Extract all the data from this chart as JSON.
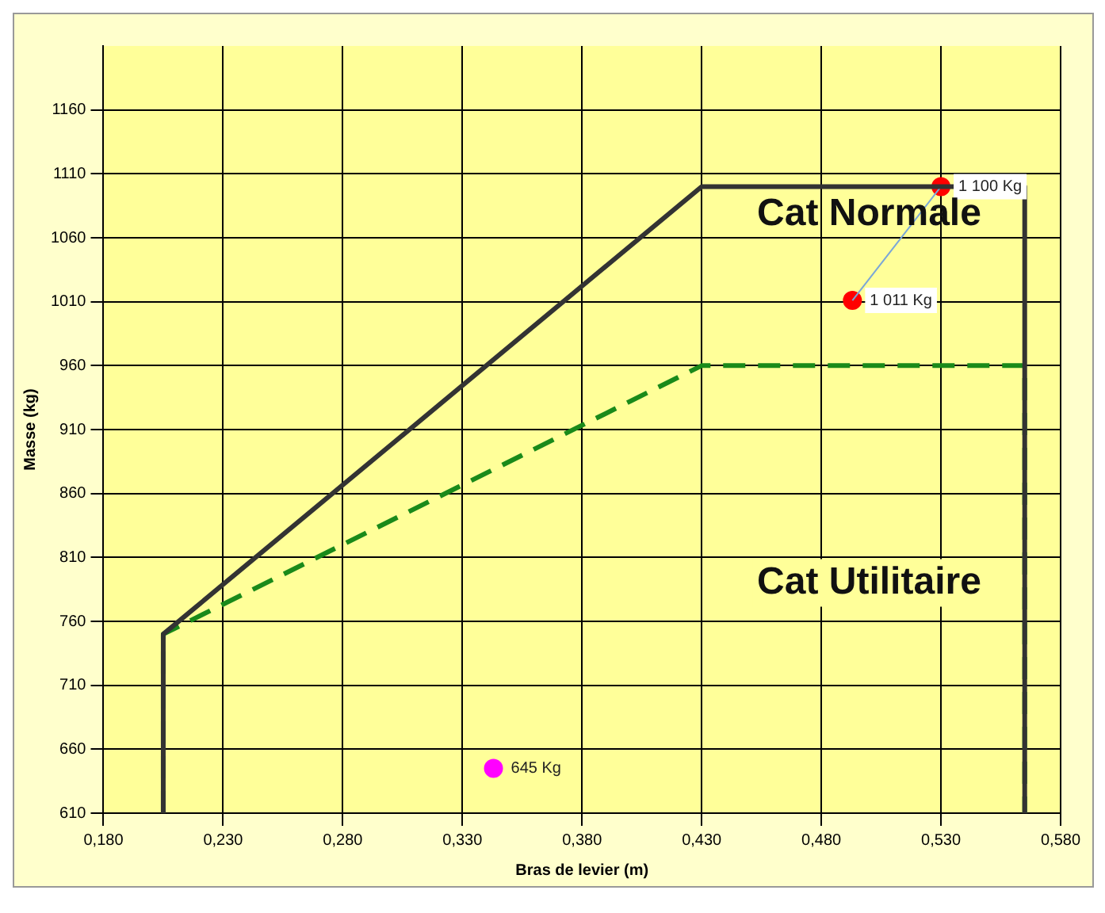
{
  "chart_data": {
    "type": "line",
    "xlabel": "Bras de levier (m)",
    "ylabel": "Masse (kg)",
    "xlim": [
      0.18,
      0.58
    ],
    "xticks": [
      {
        "value": 0.18,
        "label": "0,180"
      },
      {
        "value": 0.23,
        "label": "0,230"
      },
      {
        "value": 0.28,
        "label": "0,280"
      },
      {
        "value": 0.33,
        "label": "0,330"
      },
      {
        "value": 0.38,
        "label": "0,380"
      },
      {
        "value": 0.43,
        "label": "0,430"
      },
      {
        "value": 0.48,
        "label": "0,480"
      },
      {
        "value": 0.53,
        "label": "0,530"
      },
      {
        "value": 0.58,
        "label": "0,580"
      }
    ],
    "ylim": [
      610,
      1210
    ],
    "yticks": [
      610,
      660,
      710,
      760,
      810,
      860,
      910,
      960,
      1010,
      1060,
      1110,
      1160
    ],
    "grid": true,
    "legend": false,
    "series": [
      {
        "color": "#333333",
        "line_style": "solid",
        "marker": "none",
        "x": [
          0.205,
          0.205,
          0.43,
          0.565,
          0.565
        ],
        "values": [
          610,
          750,
          1100,
          1100,
          610
        ]
      },
      {
        "color": "#1a8a1a",
        "line_style": "dashed",
        "marker": "none",
        "x": [
          0.205,
          0.205,
          0.43,
          0.565,
          0.565
        ],
        "values": [
          610,
          750,
          960,
          960,
          610
        ]
      },
      {
        "color": "#7aa6d8",
        "line_style": "solid",
        "marker": "none",
        "x": [
          0.493,
          0.53
        ],
        "values": [
          1011,
          1100
        ]
      },
      {
        "type": "scatter",
        "color": "#ff0000",
        "marker": "circle",
        "x": [
          0.53,
          0.493
        ],
        "values": [
          1100,
          1011
        ],
        "value_labels": [
          "1 100 Kg",
          "1 011 Kg"
        ]
      },
      {
        "type": "scatter",
        "color": "#ff00ff",
        "marker": "circle",
        "x": [
          0.343
        ],
        "values": [
          645
        ],
        "value_labels": [
          "645 Kg"
        ]
      }
    ],
    "annotations": [
      "Cat Normale",
      "Cat Utilitaire"
    ]
  }
}
